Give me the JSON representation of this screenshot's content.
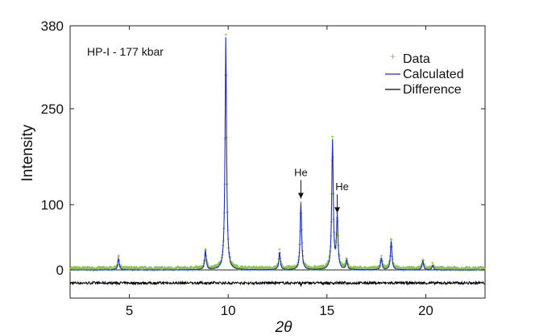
{
  "chart_data": {
    "type": "line",
    "title": "",
    "xlabel": "2θ",
    "ylabel": "Intensity",
    "xlim": [
      2.0,
      23.0
    ],
    "ylim": [
      -40,
      380
    ],
    "xticks": [
      5,
      10,
      15,
      20
    ],
    "yticks": [
      0,
      100,
      250,
      380
    ],
    "grid": false,
    "legend_position": "top-right",
    "annotation_text": "HP-I - 177 kbar",
    "colors": {
      "data": "#8bc34a",
      "calculated": "#1f2fbf",
      "difference": "#000000"
    },
    "peaks": [
      {
        "x": 4.45,
        "y": 18
      },
      {
        "x": 8.85,
        "y": 30
      },
      {
        "x": 9.88,
        "y": 362
      },
      {
        "x": 12.6,
        "y": 27
      },
      {
        "x": 13.68,
        "y": 102
      },
      {
        "x": 15.28,
        "y": 200
      },
      {
        "x": 15.52,
        "y": 80
      },
      {
        "x": 16.0,
        "y": 14
      },
      {
        "x": 17.75,
        "y": 18
      },
      {
        "x": 18.25,
        "y": 45
      },
      {
        "x": 19.85,
        "y": 14
      },
      {
        "x": 20.35,
        "y": 7
      }
    ],
    "annotations": [
      {
        "text": "He",
        "x": 13.68,
        "y": 102
      },
      {
        "text": "He",
        "x": 15.52,
        "y": 80
      }
    ],
    "series": [
      {
        "name": "Data"
      },
      {
        "name": "Calculated"
      },
      {
        "name": "Difference"
      }
    ]
  }
}
